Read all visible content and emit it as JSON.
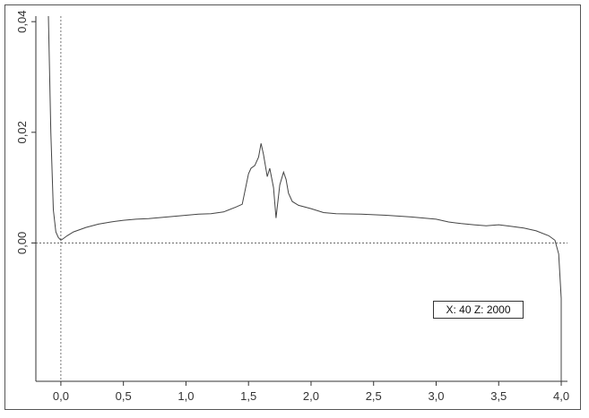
{
  "chart_data": {
    "type": "line",
    "title": "",
    "xlabel": "",
    "ylabel": "",
    "xlim": [
      -0.2,
      4.05
    ],
    "ylim": [
      -0.025,
      0.041
    ],
    "x_ticks": [
      {
        "value": 0.0,
        "label": "0,0"
      },
      {
        "value": 0.5,
        "label": "0,5"
      },
      {
        "value": 1.0,
        "label": "1,0"
      },
      {
        "value": 1.5,
        "label": "1,5"
      },
      {
        "value": 2.0,
        "label": "2,0"
      },
      {
        "value": 2.5,
        "label": "2,5"
      },
      {
        "value": 3.0,
        "label": "3,0"
      },
      {
        "value": 3.5,
        "label": "3,5"
      },
      {
        "value": 4.0,
        "label": "4,0"
      }
    ],
    "y_ticks": [
      {
        "value": 0.0,
        "label": "0,00"
      },
      {
        "value": 0.02,
        "label": "0,02"
      },
      {
        "value": 0.04,
        "label": "0,04"
      }
    ],
    "legend_text": "X: 40 Z: 2000",
    "legend_position": "lower-right",
    "grid": false,
    "reference_lines": {
      "y_zero_dashed": true,
      "x_zero_dashed": true
    },
    "line_color": "#444444",
    "series": [
      {
        "x": [
          -0.1,
          -0.08,
          -0.06,
          -0.04,
          -0.02,
          0.0,
          0.02,
          0.05,
          0.1,
          0.2,
          0.3,
          0.4,
          0.5,
          0.6,
          0.7,
          0.8,
          0.9,
          1.0,
          1.1,
          1.2,
          1.3,
          1.4,
          1.45,
          1.5,
          1.52,
          1.55,
          1.58,
          1.6,
          1.62,
          1.65,
          1.67,
          1.7,
          1.72,
          1.75,
          1.78,
          1.8,
          1.82,
          1.85,
          1.9,
          2.0,
          2.1,
          2.2,
          2.4,
          2.6,
          2.8,
          3.0,
          3.1,
          3.2,
          3.3,
          3.4,
          3.5,
          3.6,
          3.7,
          3.8,
          3.9,
          3.95,
          3.98,
          4.0,
          4.0
        ],
        "y": [
          0.041,
          0.02,
          0.006,
          0.002,
          0.001,
          0.0005,
          0.0008,
          0.0013,
          0.002,
          0.0028,
          0.0034,
          0.0038,
          0.0041,
          0.0043,
          0.0044,
          0.0046,
          0.0048,
          0.005,
          0.0052,
          0.0053,
          0.0056,
          0.0065,
          0.007,
          0.0125,
          0.0135,
          0.014,
          0.0155,
          0.018,
          0.016,
          0.012,
          0.0135,
          0.01,
          0.0045,
          0.0105,
          0.0128,
          0.0115,
          0.009,
          0.0075,
          0.0068,
          0.0062,
          0.0055,
          0.0053,
          0.0052,
          0.005,
          0.0047,
          0.0043,
          0.0038,
          0.0035,
          0.0033,
          0.0031,
          0.0033,
          0.003,
          0.0027,
          0.0022,
          0.0013,
          0.0005,
          -0.002,
          -0.01,
          -0.025
        ]
      }
    ]
  }
}
